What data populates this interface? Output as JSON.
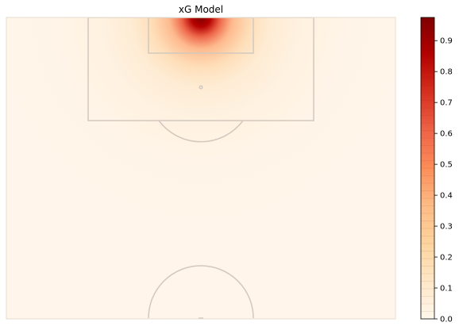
{
  "chart_data": {
    "type": "heatmap",
    "title": "xG Model",
    "xlabel": "",
    "ylabel": "",
    "colormap": "OrRd",
    "colorbar": {
      "range": [
        0.0,
        0.975
      ],
      "ticks": [
        0.0,
        0.1,
        0.2,
        0.3,
        0.4,
        0.5,
        0.6,
        0.7,
        0.8,
        0.9
      ],
      "tick_labels": [
        "0.0",
        "0.1",
        "0.2",
        "0.3",
        "0.4",
        "0.5",
        "0.6",
        "0.7",
        "0.8",
        "0.9"
      ],
      "levels": 40
    },
    "surface": {
      "description": "xG probability peaks at the goal mouth and decays with distance",
      "peak_value": 0.975,
      "peak_location": "goal centre",
      "value_at_penalty_spot": 0.22,
      "value_at_box_edge": 0.05,
      "value_at_halfway": 0.0
    },
    "pitch": {
      "view": "half pitch, vertical, goal at top",
      "line_color": "#d2c8be",
      "background_color": "#fff5eb"
    },
    "colors": {
      "low": "#fff7ec",
      "mid": "#fdbb84",
      "high": "#7f0000"
    }
  }
}
